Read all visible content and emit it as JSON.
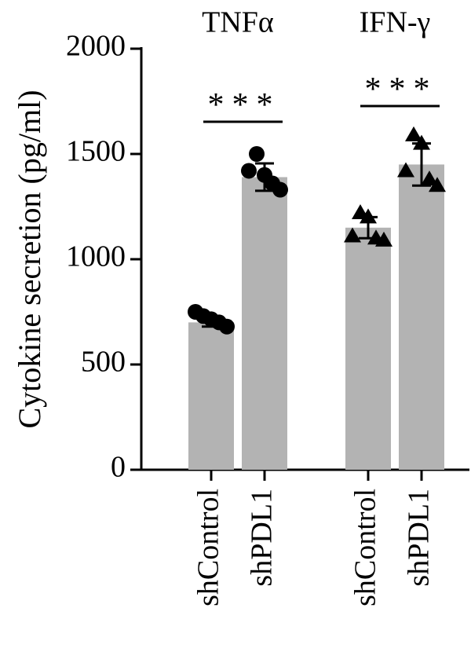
{
  "chart_data": {
    "type": "bar",
    "ylabel": "Cytokine secretion (pg/ml)",
    "ylim": [
      0,
      2000
    ],
    "yticks": [
      0,
      500,
      1000,
      1500,
      2000
    ],
    "bar_color": "#b3b3b3",
    "point_color": "#000000",
    "groups": [
      {
        "name": "TNFα",
        "marker": "circle",
        "significance": "***",
        "bars": [
          {
            "label": "shControl",
            "value": 700,
            "error": 20,
            "points": [
              750,
              730,
              715,
              700,
              680
            ]
          },
          {
            "label": "shPDL1",
            "value": 1390,
            "error": 65,
            "points": [
              1420,
              1500,
              1400,
              1360,
              1330
            ]
          }
        ]
      },
      {
        "name": "IFN-γ",
        "marker": "triangle",
        "significance": "***",
        "bars": [
          {
            "label": "shControl",
            "value": 1150,
            "error": 50,
            "points": [
              1110,
              1220,
              1200,
              1100,
              1090
            ]
          },
          {
            "label": "shPDL1",
            "value": 1450,
            "error": 100,
            "points": [
              1420,
              1590,
              1550,
              1380,
              1350
            ]
          }
        ]
      }
    ]
  }
}
